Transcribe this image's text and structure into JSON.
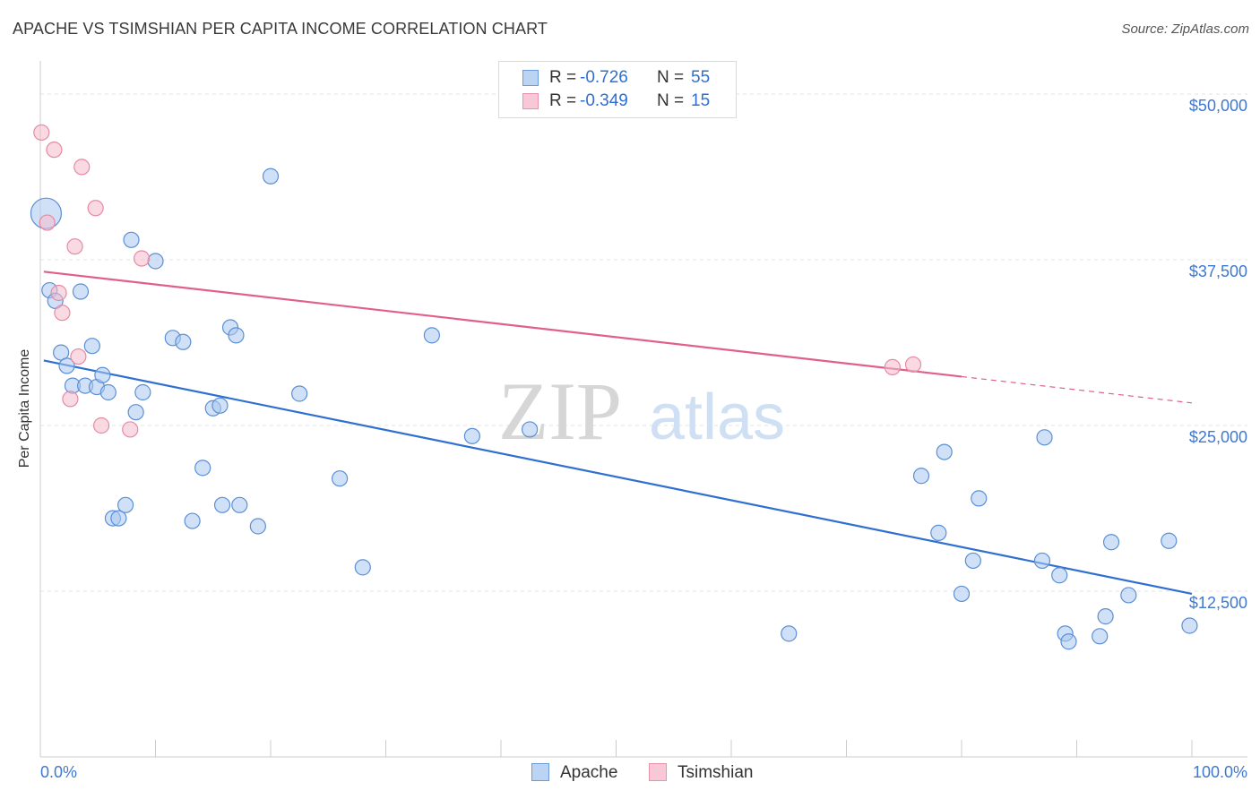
{
  "header": {
    "title": "APACHE VS TSIMSHIAN PER CAPITA INCOME CORRELATION CHART",
    "source": "Source: ZipAtlas.com"
  },
  "watermark": {
    "zip": "ZIP",
    "atlas": "atlas"
  },
  "legend": {
    "rows": [
      {
        "r_label": "R =",
        "r_value": "-0.726",
        "n_label": "N =",
        "n_value": "55"
      },
      {
        "r_label": "R =",
        "r_value": "-0.349",
        "n_label": "N =",
        "n_value": "15"
      }
    ]
  },
  "bottom_legend": {
    "apache": "Apache",
    "tsimshian": "Tsimshian"
  },
  "colors": {
    "apache_fill": "#a9c8f0",
    "apache_stroke": "#5b8fd6",
    "apache_line": "#2f6fd1",
    "tsimshian_fill": "#f6bccb",
    "tsimshian_stroke": "#e58aa5",
    "tsimshian_line": "#e0608a",
    "tick_label": "#3f78d0",
    "grid": "#e3e3e3"
  },
  "chart_data": {
    "type": "scatter",
    "title": "APACHE VS TSIMSHIAN PER CAPITA INCOME CORRELATION CHART",
    "xlabel": "",
    "ylabel": "Per Capita Income",
    "xlim": [
      0,
      100
    ],
    "ylim": [
      0,
      52500
    ],
    "x_tick_labels": [
      "0.0%",
      "100.0%"
    ],
    "y_ticks": [
      12500,
      25000,
      37500,
      50000
    ],
    "y_tick_labels": [
      "$12,500",
      "$25,000",
      "$37,500",
      "$50,000"
    ],
    "grid": true,
    "series": [
      {
        "name": "Apache",
        "r": -0.726,
        "n": 55,
        "trend": {
          "x0": 0.3,
          "y0": 29900,
          "x1": 100,
          "y1": 12300,
          "solid_until": 100
        },
        "points": [
          {
            "x": 0.5,
            "y": 41000,
            "big": true
          },
          {
            "x": 0.8,
            "y": 35200
          },
          {
            "x": 1.3,
            "y": 34400
          },
          {
            "x": 1.8,
            "y": 30500
          },
          {
            "x": 2.3,
            "y": 29500
          },
          {
            "x": 2.8,
            "y": 28000
          },
          {
            "x": 3.5,
            "y": 35100
          },
          {
            "x": 3.9,
            "y": 28000
          },
          {
            "x": 4.5,
            "y": 31000
          },
          {
            "x": 4.9,
            "y": 27900
          },
          {
            "x": 5.4,
            "y": 28800
          },
          {
            "x": 5.9,
            "y": 27500
          },
          {
            "x": 6.3,
            "y": 18000
          },
          {
            "x": 6.8,
            "y": 18000
          },
          {
            "x": 7.4,
            "y": 19000
          },
          {
            "x": 7.9,
            "y": 39000
          },
          {
            "x": 8.3,
            "y": 26000
          },
          {
            "x": 8.9,
            "y": 27500
          },
          {
            "x": 10.0,
            "y": 37400
          },
          {
            "x": 11.5,
            "y": 31600
          },
          {
            "x": 12.4,
            "y": 31300
          },
          {
            "x": 13.2,
            "y": 17800
          },
          {
            "x": 14.1,
            "y": 21800
          },
          {
            "x": 15.0,
            "y": 26300
          },
          {
            "x": 15.6,
            "y": 26500
          },
          {
            "x": 15.8,
            "y": 19000
          },
          {
            "x": 16.5,
            "y": 32400
          },
          {
            "x": 17.0,
            "y": 31800
          },
          {
            "x": 17.3,
            "y": 19000
          },
          {
            "x": 18.9,
            "y": 17400
          },
          {
            "x": 20.0,
            "y": 43800
          },
          {
            "x": 22.5,
            "y": 27400
          },
          {
            "x": 26.0,
            "y": 21000
          },
          {
            "x": 28.0,
            "y": 14300
          },
          {
            "x": 34.0,
            "y": 31800
          },
          {
            "x": 37.5,
            "y": 24200
          },
          {
            "x": 42.5,
            "y": 24700
          },
          {
            "x": 65.0,
            "y": 9300
          },
          {
            "x": 76.5,
            "y": 21200
          },
          {
            "x": 78.0,
            "y": 16900
          },
          {
            "x": 78.5,
            "y": 23000
          },
          {
            "x": 80.0,
            "y": 12300
          },
          {
            "x": 81.0,
            "y": 14800
          },
          {
            "x": 81.5,
            "y": 19500
          },
          {
            "x": 87.0,
            "y": 14800
          },
          {
            "x": 87.2,
            "y": 24100
          },
          {
            "x": 88.5,
            "y": 13700
          },
          {
            "x": 89.0,
            "y": 9300
          },
          {
            "x": 89.3,
            "y": 8700
          },
          {
            "x": 92.0,
            "y": 9100
          },
          {
            "x": 92.5,
            "y": 10600
          },
          {
            "x": 93.0,
            "y": 16200
          },
          {
            "x": 94.5,
            "y": 12200
          },
          {
            "x": 98.0,
            "y": 16300
          },
          {
            "x": 99.8,
            "y": 9900
          }
        ]
      },
      {
        "name": "Tsimshian",
        "r": -0.349,
        "n": 15,
        "trend": {
          "x0": 0.3,
          "y0": 36600,
          "x1": 100,
          "y1": 26700,
          "solid_until": 80
        },
        "points": [
          {
            "x": 0.1,
            "y": 47100
          },
          {
            "x": 0.6,
            "y": 40300
          },
          {
            "x": 1.2,
            "y": 45800
          },
          {
            "x": 1.6,
            "y": 35000
          },
          {
            "x": 1.9,
            "y": 33500
          },
          {
            "x": 2.6,
            "y": 27000
          },
          {
            "x": 3.0,
            "y": 38500
          },
          {
            "x": 3.3,
            "y": 30200
          },
          {
            "x": 3.6,
            "y": 44500
          },
          {
            "x": 4.8,
            "y": 41400
          },
          {
            "x": 5.3,
            "y": 25000
          },
          {
            "x": 7.8,
            "y": 24700
          },
          {
            "x": 8.8,
            "y": 37600
          },
          {
            "x": 74.0,
            "y": 29400
          },
          {
            "x": 75.8,
            "y": 29600
          }
        ]
      }
    ]
  }
}
